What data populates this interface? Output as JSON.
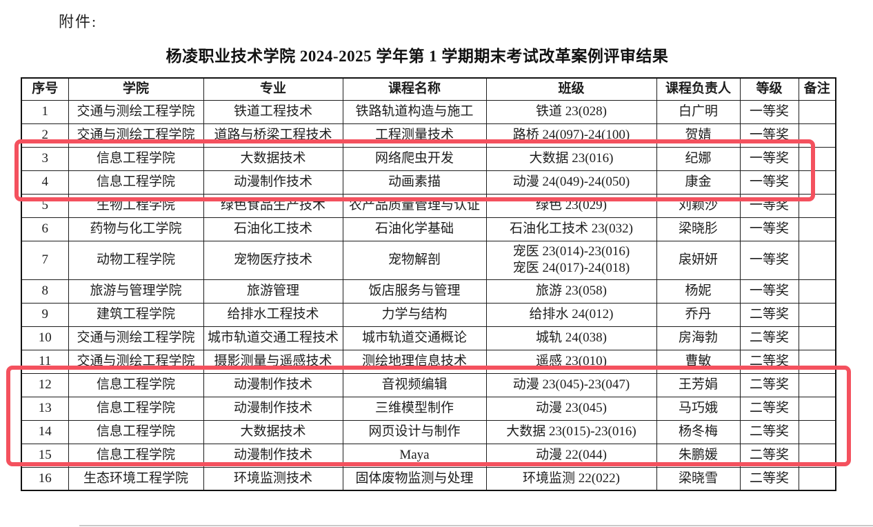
{
  "page": {
    "attachment_label": "附件:",
    "title": "杨凌职业技术学院 2024-2025 学年第 1 学期期末考试改革案例评审结果"
  },
  "table": {
    "columns": [
      "序号",
      "学院",
      "专业",
      "课程名称",
      "班级",
      "课程负责人",
      "等级",
      "备注"
    ],
    "rows": [
      {
        "no": "1",
        "college": "交通与测绘工程学院",
        "major": "铁道工程技术",
        "course": "铁路轨道构造与施工",
        "class": "铁道 23(028)",
        "leader": "白广明",
        "award": "一等奖",
        "note": ""
      },
      {
        "no": "2",
        "college": "交通与测绘工程学院",
        "major": "道路与桥梁工程技术",
        "course": "工程测量技术",
        "class": "路桥 24(097)-24(100)",
        "leader": "贺婧",
        "award": "一等奖",
        "note": ""
      },
      {
        "no": "3",
        "college": "信息工程学院",
        "major": "大数据技术",
        "course": "网络爬虫开发",
        "class": "大数据 23(016)",
        "leader": "纪娜",
        "award": "一等奖",
        "note": ""
      },
      {
        "no": "4",
        "college": "信息工程学院",
        "major": "动漫制作技术",
        "course": "动画素描",
        "class": "动漫 24(049)-24(050)",
        "leader": "康金",
        "award": "一等奖",
        "note": ""
      },
      {
        "no": "5",
        "college": "生物工程学院",
        "major": "绿色食品生产技术",
        "course": "农产品质量管理与认证",
        "class": "绿色 23(029)",
        "leader": "刘颖沙",
        "award": "一等奖",
        "note": ""
      },
      {
        "no": "6",
        "college": "药物与化工学院",
        "major": "石油化工技术",
        "course": "石油化学基础",
        "class": "石油化工技术 23(032)",
        "leader": "梁晓肜",
        "award": "一等奖",
        "note": ""
      },
      {
        "no": "7",
        "college": "动物工程学院",
        "major": "宠物医疗技术",
        "course": "宠物解剖",
        "class": "宠医 23(014)-23(016)\n宠医 24(017)-24(018)",
        "leader": "扆妍妍",
        "award": "一等奖",
        "note": ""
      },
      {
        "no": "8",
        "college": "旅游与管理学院",
        "major": "旅游管理",
        "course": "饭店服务与管理",
        "class": "旅游 23(058)",
        "leader": "杨妮",
        "award": "一等奖",
        "note": ""
      },
      {
        "no": "9",
        "college": "建筑工程学院",
        "major": "给排水工程技术",
        "course": "力学与结构",
        "class": "给排水 24(012)",
        "leader": "乔丹",
        "award": "二等奖",
        "note": ""
      },
      {
        "no": "10",
        "college": "交通与测绘工程学院",
        "major": "城市轨道交通工程技术",
        "course": "城市轨道交通概论",
        "class": "城轨 24(038)",
        "leader": "房海勃",
        "award": "二等奖",
        "note": ""
      },
      {
        "no": "11",
        "college": "交通与测绘工程学院",
        "major": "摄影测量与遥感技术",
        "course": "测绘地理信息技术",
        "class": "遥感 23(010)",
        "leader": "曹敏",
        "award": "二等奖",
        "note": ""
      },
      {
        "no": "12",
        "college": "信息工程学院",
        "major": "动漫制作技术",
        "course": "音视频编辑",
        "class": "动漫 23(045)-23(047)",
        "leader": "王芳娟",
        "award": "二等奖",
        "note": ""
      },
      {
        "no": "13",
        "college": "信息工程学院",
        "major": "动漫制作技术",
        "course": "三维模型制作",
        "class": "动漫 23(045)",
        "leader": "马巧娥",
        "award": "二等奖",
        "note": ""
      },
      {
        "no": "14",
        "college": "信息工程学院",
        "major": "大数据技术",
        "course": "网页设计与制作",
        "class": "大数据 23(015)-23(016)",
        "leader": "杨冬梅",
        "award": "二等奖",
        "note": ""
      },
      {
        "no": "15",
        "college": "信息工程学院",
        "major": "动漫制作技术",
        "course": "Maya",
        "class": "动漫 22(044)",
        "leader": "朱鹏媛",
        "award": "二等奖",
        "note": ""
      },
      {
        "no": "16",
        "college": "生态环境工程学院",
        "major": "环境监测技术",
        "course": "固体废物监测与处理",
        "class": "环境监测 22(022)",
        "leader": "梁晓雪",
        "award": "二等奖",
        "note": ""
      }
    ]
  },
  "highlights": {
    "color": "#f4515e",
    "boxes": [
      {
        "label": "highlight-rows-3-4"
      },
      {
        "label": "highlight-rows-12-15"
      }
    ]
  }
}
